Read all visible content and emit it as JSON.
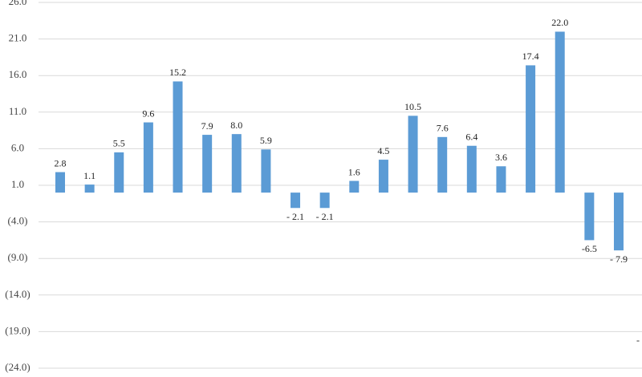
{
  "chart_data": {
    "type": "bar",
    "categories": [
      null,
      null,
      null,
      null,
      null,
      null,
      null,
      null,
      null,
      null,
      null,
      null,
      null,
      null,
      null,
      null,
      null,
      null,
      null,
      null
    ],
    "values": [
      2.8,
      1.1,
      5.5,
      9.6,
      15.2,
      7.9,
      8.0,
      5.9,
      -2.1,
      -2.1,
      1.6,
      4.5,
      10.5,
      7.6,
      6.4,
      3.6,
      17.4,
      22.0,
      -6.5,
      -7.9
    ],
    "value_labels": [
      "2.8",
      "1.1",
      "5.5",
      "9.6",
      "15.2",
      "7.9",
      "8.0",
      "5.9",
      "- 2.1",
      "- 2.1",
      "1.6",
      "4.5",
      "10.5",
      "7.6",
      "6.4",
      "3.6",
      "17.4",
      "22.0",
      "-6.5",
      "- 7.9"
    ],
    "color": "#5b9bd5",
    "ylim": [
      -24,
      26
    ],
    "yticks": [
      {
        "value": 26,
        "label": "26.0"
      },
      {
        "value": 21,
        "label": "21.0"
      },
      {
        "value": 16,
        "label": "16.0"
      },
      {
        "value": 11,
        "label": "11.0"
      },
      {
        "value": 6,
        "label": "6.0"
      },
      {
        "value": 1,
        "label": "1.0"
      },
      {
        "value": -4,
        "label": "(4.0)"
      },
      {
        "value": -9,
        "label": "(9.0)"
      },
      {
        "value": -14,
        "label": "(14.0)"
      },
      {
        "value": -19,
        "label": "(19.0)"
      },
      {
        "value": -24,
        "label": "(24.0)"
      }
    ],
    "grid": true,
    "annotation": "-"
  }
}
